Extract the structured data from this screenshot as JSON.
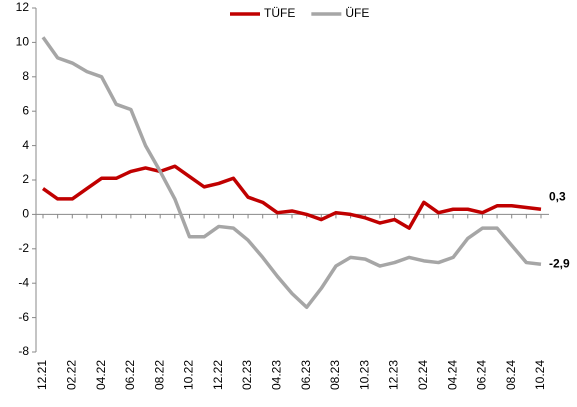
{
  "chart_data": {
    "type": "line",
    "categories": [
      "12.21",
      null,
      "02.22",
      null,
      "04.22",
      null,
      "06.22",
      null,
      "08.22",
      null,
      "10.22",
      null,
      "12.22",
      null,
      "02.23",
      null,
      "04.23",
      null,
      "06.23",
      null,
      "08.23",
      null,
      "10.23",
      null,
      "12.23",
      null,
      "02.24",
      null,
      "04.24",
      null,
      "06.24",
      null,
      "08.24",
      null,
      "10.24"
    ],
    "series": [
      {
        "name": "TÜFE",
        "color": "#c00000",
        "values": [
          1.5,
          0.9,
          0.9,
          1.5,
          2.1,
          2.1,
          2.5,
          2.7,
          2.5,
          2.8,
          2.2,
          1.6,
          1.8,
          2.1,
          1.0,
          0.7,
          0.1,
          0.2,
          0.0,
          -0.3,
          0.1,
          0.0,
          -0.2,
          -0.5,
          -0.3,
          -0.8,
          0.7,
          0.1,
          0.3,
          0.3,
          0.1,
          0.5,
          0.5,
          0.4,
          0.3
        ],
        "value_labels": [
          null,
          null,
          null,
          null,
          null,
          null,
          null,
          null,
          null,
          null,
          null,
          null,
          null,
          null,
          null,
          null,
          null,
          null,
          null,
          null,
          null,
          null,
          null,
          null,
          null,
          null,
          null,
          null,
          null,
          null,
          null,
          null,
          null,
          null,
          "0,3"
        ]
      },
      {
        "name": "ÜFE",
        "color": "#a6a6a6",
        "values": [
          10.3,
          9.1,
          8.8,
          8.3,
          8.0,
          6.4,
          6.1,
          4.0,
          2.5,
          0.9,
          -1.3,
          -1.3,
          -0.7,
          -0.8,
          -1.5,
          -2.5,
          -3.6,
          -4.6,
          -5.4,
          -4.3,
          -3.0,
          -2.5,
          -2.6,
          -3.0,
          -2.8,
          -2.5,
          -2.7,
          -2.8,
          -2.5,
          -1.4,
          -0.8,
          -0.8,
          -1.8,
          -2.8,
          -2.9
        ],
        "value_labels": [
          null,
          null,
          null,
          null,
          null,
          null,
          null,
          null,
          null,
          null,
          null,
          null,
          null,
          null,
          null,
          null,
          null,
          null,
          null,
          null,
          null,
          null,
          null,
          null,
          null,
          null,
          null,
          null,
          null,
          null,
          null,
          null,
          null,
          null,
          "-2,9"
        ]
      }
    ],
    "ylim": [
      -8,
      12
    ],
    "yticks": [
      -8,
      -6,
      -4,
      -2,
      0,
      2,
      4,
      6,
      8,
      10,
      12
    ],
    "grid": false,
    "legend": "top"
  }
}
